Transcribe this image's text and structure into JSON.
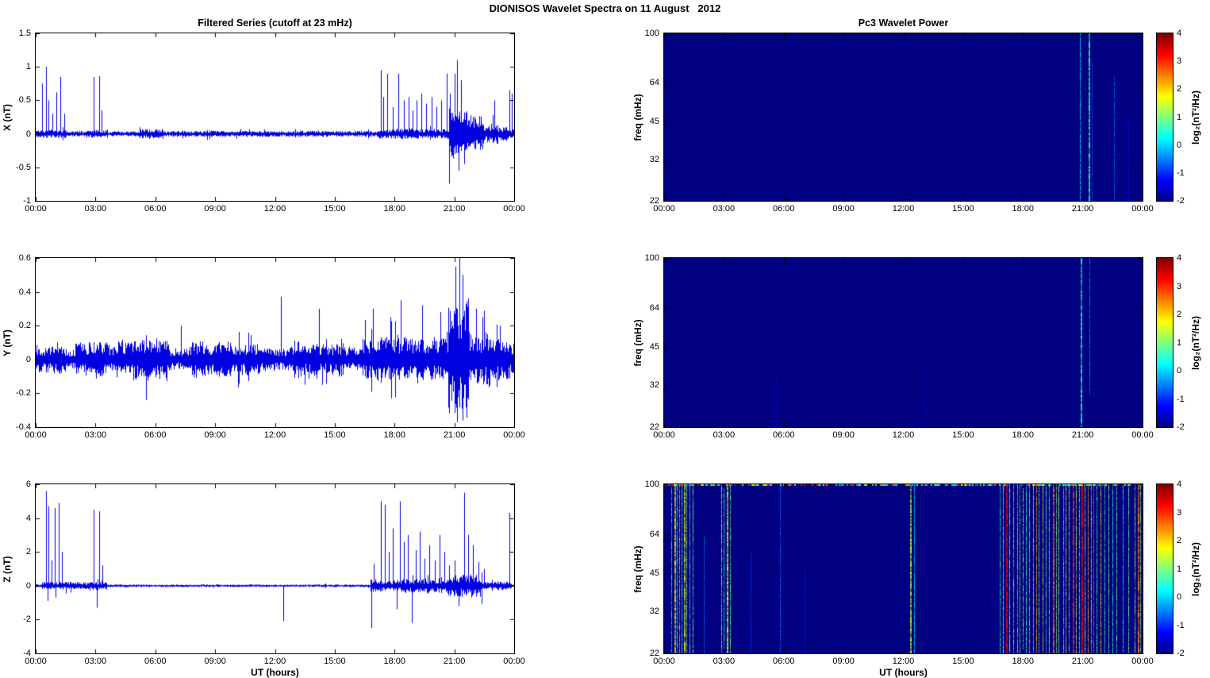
{
  "figure_title": "DIONISOS Wavelet Spectra on 11 August   2012",
  "x_axis": {
    "label": "UT (hours)",
    "ticks": [
      "00:00",
      "03:00",
      "06:00",
      "09:00",
      "12:00",
      "15:00",
      "18:00",
      "21:00",
      "00:00"
    ],
    "range_hours": [
      0,
      24
    ]
  },
  "colorbar": {
    "label": "log₂(nT²/Hz)",
    "ticks": [
      4,
      3,
      2,
      1,
      0,
      -1,
      -2
    ],
    "range": [
      -2,
      4
    ],
    "colormap": "jet"
  },
  "colors": {
    "line": "#0000E0",
    "spectrogram_background": "#00008F",
    "colorbar_min": "#00007F",
    "colorbar_max": "#7F0000"
  },
  "chart_data": [
    {
      "type": "line",
      "component": "X",
      "title": "Filtered Series (cutoff at 23 mHz)",
      "ylabel": "X (nT)",
      "ylim": [
        -1,
        1.5
      ],
      "yticks": [
        1.5,
        1,
        0.5,
        0,
        -0.5,
        -1
      ],
      "xlim_hours": [
        0,
        24
      ],
      "seed": 11,
      "base_amp": 0.032,
      "noise_envelope": [
        {
          "t0": 0,
          "t1": 1.6,
          "amp": 0.045
        },
        {
          "t0": 2.6,
          "t1": 3.6,
          "amp": 0.045
        },
        {
          "t0": 5.2,
          "t1": 6.4,
          "amp": 0.065
        },
        {
          "t0": 17.2,
          "t1": 20.75,
          "amp": 0.055
        },
        {
          "t0": 20.75,
          "t1": 21.65,
          "amp": 0.27
        },
        {
          "t0": 21.65,
          "t1": 22.45,
          "amp": 0.2
        },
        {
          "t0": 22.45,
          "t1": 23.2,
          "amp": 0.11
        },
        {
          "t0": 23.2,
          "t1": 24,
          "amp": 0.07
        }
      ],
      "spikes": [
        {
          "t": 0.3,
          "v": 0.75
        },
        {
          "t": 0.5,
          "v": 1.0
        },
        {
          "t": 0.65,
          "v": 0.5
        },
        {
          "t": 0.82,
          "v": 0.3
        },
        {
          "t": 1.02,
          "v": 0.62
        },
        {
          "t": 1.25,
          "v": 0.85
        },
        {
          "t": 1.45,
          "v": 0.3
        },
        {
          "t": 2.9,
          "v": 0.85
        },
        {
          "t": 3.2,
          "v": 0.86
        },
        {
          "t": 3.32,
          "v": 0.35
        },
        {
          "t": 17.3,
          "v": 0.95
        },
        {
          "t": 17.45,
          "v": 0.55
        },
        {
          "t": 17.62,
          "v": 0.9
        },
        {
          "t": 17.9,
          "v": 0.4
        },
        {
          "t": 18.2,
          "v": 0.9
        },
        {
          "t": 18.45,
          "v": 0.5
        },
        {
          "t": 18.7,
          "v": 0.55
        },
        {
          "t": 18.9,
          "v": 0.35
        },
        {
          "t": 19.1,
          "v": 0.5
        },
        {
          "t": 19.35,
          "v": 0.6
        },
        {
          "t": 19.6,
          "v": 0.45
        },
        {
          "t": 19.85,
          "v": 0.55
        },
        {
          "t": 20.1,
          "v": 0.4
        },
        {
          "t": 20.35,
          "v": 0.5
        },
        {
          "t": 20.6,
          "v": 0.9
        },
        {
          "t": 20.78,
          "v": 0.6
        },
        {
          "t": 21.0,
          "v": 0.9
        },
        {
          "t": 21.15,
          "v": 1.1
        },
        {
          "t": 21.22,
          "v": -0.55
        },
        {
          "t": 21.35,
          "v": 0.8
        },
        {
          "t": 21.5,
          "v": -0.45
        },
        {
          "t": 23.0,
          "v": 0.5
        },
        {
          "t": 23.75,
          "v": 0.65
        },
        {
          "t": 23.9,
          "v": 0.6
        }
      ]
    },
    {
      "type": "heatmap",
      "component": "X",
      "title": "Pc3 Wavelet Power",
      "ylabel": "freq (mHz)",
      "ylim_mhz": [
        22,
        100
      ],
      "freq_ticks": [
        100,
        64,
        45,
        32,
        22
      ],
      "yscale": "log",
      "background_value": -2,
      "seed": 44,
      "streaks": [
        {
          "t": 20.85,
          "v": 0.2
        },
        {
          "t": 21.3,
          "v": 0.7,
          "w": 2
        },
        {
          "t": 21.45,
          "v": -0.8,
          "f0": 0.15
        },
        {
          "t": 22.55,
          "v": -0.7,
          "f0": 0.25
        },
        {
          "t": 23.3,
          "v": -1.2,
          "f0": 0.5
        }
      ]
    },
    {
      "type": "line",
      "component": "Y",
      "ylabel": "Y (nT)",
      "ylim": [
        -0.4,
        0.6
      ],
      "yticks": [
        0.6,
        0.4,
        0.2,
        0,
        -0.2,
        -0.4
      ],
      "xlim_hours": [
        0,
        24
      ],
      "seed": 22,
      "base_amp": 0.05,
      "noise_envelope": [
        {
          "t0": 0,
          "t1": 1.3,
          "amp": 0.07
        },
        {
          "t0": 2,
          "t1": 3.7,
          "amp": 0.075
        },
        {
          "t0": 3.9,
          "t1": 6.7,
          "amp": 0.085
        },
        {
          "t0": 7.8,
          "t1": 11.3,
          "amp": 0.075
        },
        {
          "t0": 12.7,
          "t1": 15.3,
          "amp": 0.07
        },
        {
          "t0": 16.4,
          "t1": 20.7,
          "amp": 0.095
        },
        {
          "t0": 20.7,
          "t1": 21.75,
          "amp": 0.26
        },
        {
          "t0": 21.75,
          "t1": 22.8,
          "amp": 0.12
        },
        {
          "t0": 22.8,
          "t1": 24,
          "amp": 0.085
        }
      ],
      "spikes": [
        {
          "t": 7.3,
          "v": 0.2
        },
        {
          "t": 12.3,
          "v": 0.37
        },
        {
          "t": 14.2,
          "v": 0.3
        },
        {
          "t": 14.35,
          "v": -0.15
        },
        {
          "t": 16.9,
          "v": 0.3
        },
        {
          "t": 17.8,
          "v": 0.25
        },
        {
          "t": 18.3,
          "v": 0.35
        },
        {
          "t": 19.4,
          "v": 0.32
        },
        {
          "t": 20.3,
          "v": 0.28
        },
        {
          "t": 21.05,
          "v": 0.55
        },
        {
          "t": 21.15,
          "v": -0.37
        },
        {
          "t": 21.25,
          "v": 0.6
        },
        {
          "t": 21.4,
          "v": 0.5
        },
        {
          "t": 21.6,
          "v": -0.3
        },
        {
          "t": 22.1,
          "v": 0.3
        },
        {
          "t": 22.4,
          "v": 0.25
        },
        {
          "t": 23.3,
          "v": 0.2
        }
      ]
    },
    {
      "type": "heatmap",
      "component": "Y",
      "ylabel": "freq (mHz)",
      "ylim_mhz": [
        22,
        100
      ],
      "freq_ticks": [
        100,
        64,
        45,
        32,
        22
      ],
      "yscale": "log",
      "background_value": -2,
      "seed": 55,
      "streaks": [
        {
          "t": 20.9,
          "v": 0.5,
          "w": 2
        },
        {
          "t": 21.35,
          "v": -0.4,
          "f1": 0.8
        },
        {
          "t": 5.6,
          "v": -1.4,
          "f0": 0.7
        },
        {
          "t": 13.0,
          "v": -1.5,
          "f0": 0.6
        }
      ]
    },
    {
      "type": "line",
      "component": "Z",
      "ylabel": "Z (nT)",
      "ylim": [
        -4,
        6
      ],
      "yticks": [
        6,
        4,
        2,
        0,
        -2,
        -4
      ],
      "xlim_hours": [
        0,
        24
      ],
      "seed": 33,
      "base_amp": 0.055,
      "noise_envelope": [
        {
          "t0": 0.3,
          "t1": 3.6,
          "amp": 0.16
        },
        {
          "t0": 16.8,
          "t1": 20.6,
          "amp": 0.28
        },
        {
          "t0": 20.6,
          "t1": 22.4,
          "amp": 0.5
        },
        {
          "t0": 22.4,
          "t1": 23.9,
          "amp": 0.18
        }
      ],
      "spikes": [
        {
          "t": 0.5,
          "v": 5.6
        },
        {
          "t": 0.65,
          "v": 4.7
        },
        {
          "t": 0.8,
          "v": 1.5
        },
        {
          "t": 0.95,
          "v": 4.6
        },
        {
          "t": 1.15,
          "v": 4.9
        },
        {
          "t": 1.3,
          "v": 2.0
        },
        {
          "t": 0.6,
          "v": -0.9
        },
        {
          "t": 1.0,
          "v": -0.7
        },
        {
          "t": 2.9,
          "v": 4.5
        },
        {
          "t": 3.05,
          "v": -1.3
        },
        {
          "t": 3.2,
          "v": 4.4
        },
        {
          "t": 3.35,
          "v": 1.2
        },
        {
          "t": 12.4,
          "v": -2.1
        },
        {
          "t": 16.85,
          "v": -2.5
        },
        {
          "t": 16.95,
          "v": 1.3
        },
        {
          "t": 17.3,
          "v": 5.0
        },
        {
          "t": 17.5,
          "v": 4.8
        },
        {
          "t": 17.7,
          "v": 2.0
        },
        {
          "t": 17.9,
          "v": 3.4
        },
        {
          "t": 18.1,
          "v": -1.4
        },
        {
          "t": 18.25,
          "v": 5.0
        },
        {
          "t": 18.45,
          "v": 2.6
        },
        {
          "t": 18.65,
          "v": 3.0
        },
        {
          "t": 18.85,
          "v": -2.2
        },
        {
          "t": 19.05,
          "v": 2.1
        },
        {
          "t": 19.25,
          "v": 3.2
        },
        {
          "t": 19.5,
          "v": 1.6
        },
        {
          "t": 19.75,
          "v": 2.4
        },
        {
          "t": 20.0,
          "v": 1.5
        },
        {
          "t": 20.25,
          "v": 3.0
        },
        {
          "t": 20.5,
          "v": 2.0
        },
        {
          "t": 20.75,
          "v": 1.2
        },
        {
          "t": 21.0,
          "v": 1.5
        },
        {
          "t": 21.2,
          "v": -1.2
        },
        {
          "t": 21.5,
          "v": 5.5
        },
        {
          "t": 21.7,
          "v": 3.0
        },
        {
          "t": 21.95,
          "v": 2.4
        },
        {
          "t": 22.2,
          "v": 1.4
        },
        {
          "t": 22.5,
          "v": 1.0
        },
        {
          "t": 23.75,
          "v": 4.3
        }
      ]
    },
    {
      "type": "heatmap",
      "component": "Z",
      "ylabel": "freq (mHz)",
      "ylim_mhz": [
        22,
        100
      ],
      "freq_ticks": [
        100,
        64,
        45,
        32,
        22
      ],
      "yscale": "log",
      "background_value": -2,
      "seed": 66,
      "top_edge_speckle": true,
      "streaks": [
        {
          "t": 0.35,
          "v": 0.4
        },
        {
          "t": 0.5,
          "v": 1.6,
          "w": 2
        },
        {
          "t": 0.62,
          "v": 0.8
        },
        {
          "t": 0.75,
          "v": 1.2
        },
        {
          "t": 0.88,
          "v": 0.5
        },
        {
          "t": 1.0,
          "v": 1.9,
          "w": 2
        },
        {
          "t": 1.12,
          "v": 0.9
        },
        {
          "t": 1.28,
          "v": 0.5
        },
        {
          "t": 1.42,
          "v": 0.9
        },
        {
          "t": 2.0,
          "v": -0.6,
          "f0": 0.3
        },
        {
          "t": 2.85,
          "v": 1.3
        },
        {
          "t": 3.0,
          "v": 0.6
        },
        {
          "t": 3.15,
          "v": 1.6,
          "w": 2
        },
        {
          "t": 3.3,
          "v": 0.8
        },
        {
          "t": 4.35,
          "v": -0.9,
          "f0": 0.4
        },
        {
          "t": 5.8,
          "v": -0.6
        },
        {
          "t": 7.05,
          "v": -1.1,
          "f0": 0.5
        },
        {
          "t": 12.35,
          "v": 1.4,
          "w": 2
        },
        {
          "t": 12.55,
          "v": 0.2
        },
        {
          "t": 16.85,
          "v": 0.6
        },
        {
          "t": 17.0,
          "v": 1.1
        },
        {
          "t": 17.15,
          "v": 3.2,
          "w": 2
        },
        {
          "t": 17.3,
          "v": 1.6
        },
        {
          "t": 17.5,
          "v": 0.9
        },
        {
          "t": 17.7,
          "v": 2.1
        },
        {
          "t": 17.85,
          "v": 0.7
        },
        {
          "t": 18.0,
          "v": 1.3
        },
        {
          "t": 18.15,
          "v": 0.6
        },
        {
          "t": 18.3,
          "v": 1.9
        },
        {
          "t": 18.5,
          "v": 1.0
        },
        {
          "t": 18.65,
          "v": 2.3
        },
        {
          "t": 18.8,
          "v": 0.8
        },
        {
          "t": 19.0,
          "v": 1.5
        },
        {
          "t": 19.15,
          "v": 0.7
        },
        {
          "t": 19.3,
          "v": 1.1
        },
        {
          "t": 19.5,
          "v": 2.6,
          "w": 2
        },
        {
          "t": 19.65,
          "v": 0.9
        },
        {
          "t": 19.8,
          "v": 1.3
        },
        {
          "t": 20.0,
          "v": 0.6
        },
        {
          "t": 20.15,
          "v": 1.7
        },
        {
          "t": 20.3,
          "v": 1.0
        },
        {
          "t": 20.5,
          "v": 2.9,
          "w": 2
        },
        {
          "t": 20.65,
          "v": 1.2
        },
        {
          "t": 20.8,
          "v": 2.0
        },
        {
          "t": 20.95,
          "v": 3.1,
          "w": 2
        },
        {
          "t": 21.1,
          "v": 1.4
        },
        {
          "t": 21.25,
          "v": 2.3
        },
        {
          "t": 21.4,
          "v": 1.1
        },
        {
          "t": 21.55,
          "v": 2.7
        },
        {
          "t": 21.7,
          "v": 0.9
        },
        {
          "t": 21.9,
          "v": 1.6
        },
        {
          "t": 22.1,
          "v": 0.7
        },
        {
          "t": 22.3,
          "v": 1.2
        },
        {
          "t": 22.5,
          "v": 0.5
        },
        {
          "t": 22.7,
          "v": 1.0
        },
        {
          "t": 23.0,
          "v": 0.6
        },
        {
          "t": 23.3,
          "v": 0.8
        },
        {
          "t": 23.6,
          "v": 1.3
        },
        {
          "t": 23.78,
          "v": 2.5,
          "w": 2
        },
        {
          "t": 23.9,
          "v": 1.1
        }
      ]
    }
  ]
}
